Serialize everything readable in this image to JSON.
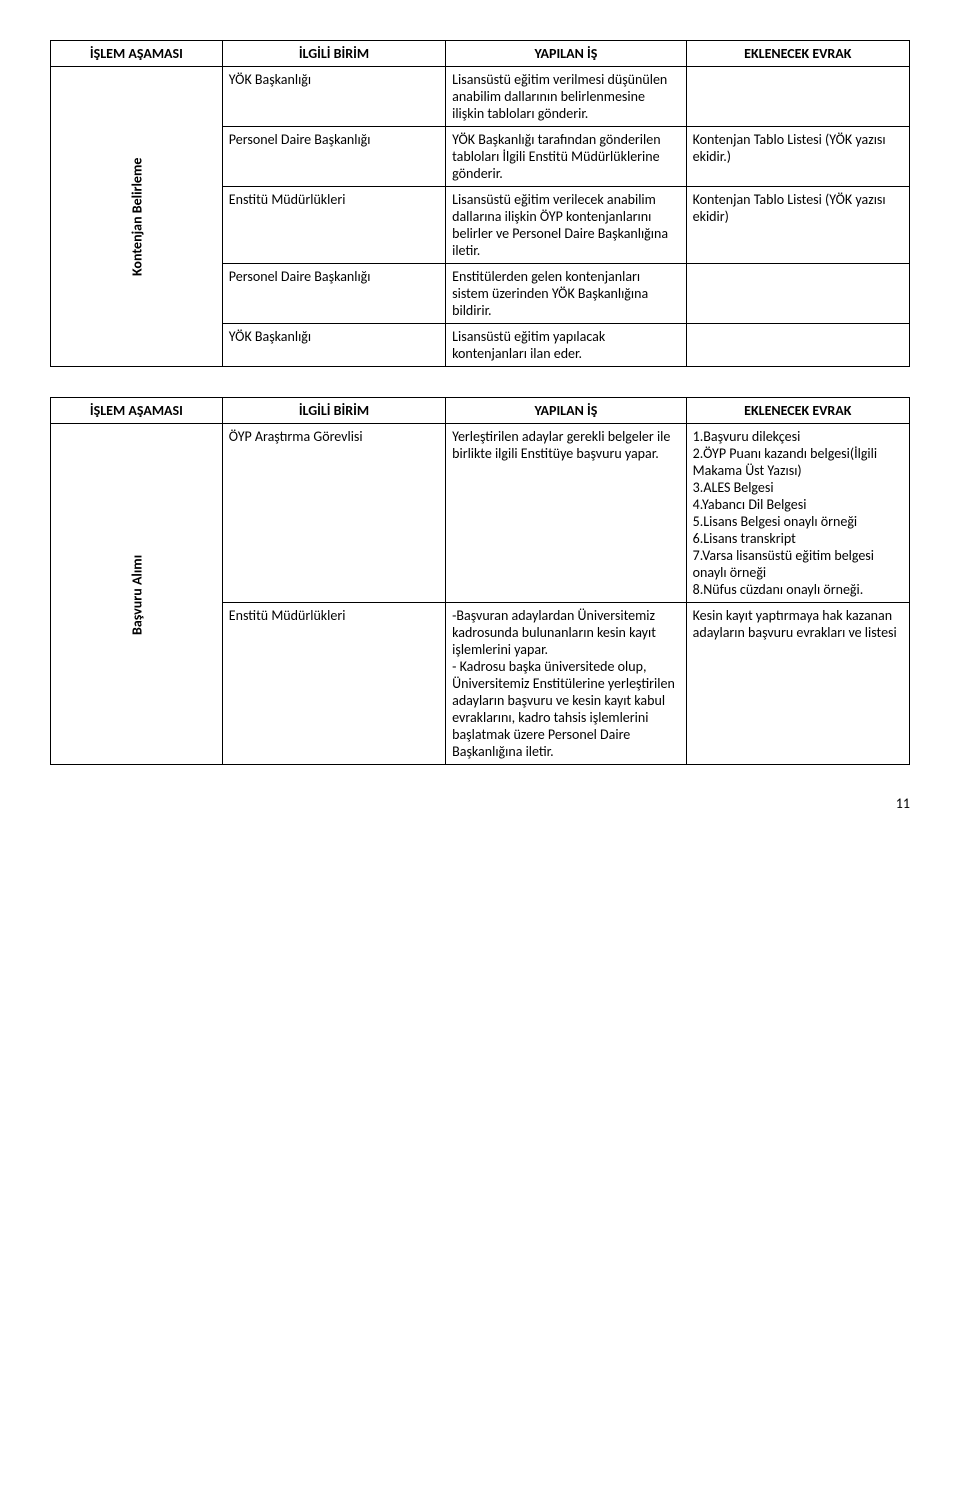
{
  "headers": {
    "c1": "İŞLEM AŞAMASI",
    "c2": "İLGİLİ BİRİM",
    "c3": "YAPILAN İŞ",
    "c4": "EKLENECEK EVRAK"
  },
  "table1": {
    "stage": "Kontenjan Belirleme",
    "rows": [
      {
        "unit": "YÖK Başkanlığı",
        "task": "Lisansüstü eğitim verilmesi düşünülen anabilim dallarının belirlenmesine ilişkin tabloları gönderir.",
        "doc": ""
      },
      {
        "unit": "Personel Daire Başkanlığı",
        "task": "YÖK Başkanlığı tarafından gönderilen tabloları İlgili Enstitü Müdürlüklerine gönderir.",
        "doc": "Kontenjan Tablo Listesi (YÖK yazısı ekidir.)"
      },
      {
        "unit": "Enstitü Müdürlükleri",
        "task": "Lisansüstü eğitim verilecek anabilim dallarına ilişkin ÖYP kontenjanlarını belirler ve Personel Daire Başkanlığına iletir.",
        "doc": "Kontenjan Tablo Listesi (YÖK yazısı ekidir)"
      },
      {
        "unit": "Personel Daire Başkanlığı",
        "task": "Enstitülerden gelen kontenjanları sistem üzerinden YÖK Başkanlığına bildirir.",
        "doc": ""
      },
      {
        "unit": "YÖK Başkanlığı",
        "task": "Lisansüstü eğitim yapılacak kontenjanları ilan eder.",
        "doc": ""
      }
    ]
  },
  "table2": {
    "stage": "Başvuru Alımı",
    "rows": [
      {
        "unit": "ÖYP Araştırma Görevlisi",
        "task": "Yerleştirilen adaylar gerekli belgeler ile birlikte ilgili Enstitüye başvuru yapar.",
        "doc": "1.Başvuru dilekçesi\n2.ÖYP Puanı kazandı belgesi(İlgili Makama Üst Yazısı)\n3.ALES Belgesi\n4.Yabancı Dil Belgesi\n5.Lisans Belgesi onaylı örneği\n6.Lisans transkript\n7.Varsa lisansüstü eğitim belgesi onaylı örneği\n8.Nüfus cüzdanı onaylı örneği."
      },
      {
        "unit": "Enstitü Müdürlükleri",
        "task": "-Başvuran adaylardan Üniversitemiz kadrosunda bulunanların kesin kayıt işlemlerini yapar.\n- Kadrosu başka üniversitede olup, Üniversitemiz Enstitülerine yerleştirilen adayların başvuru ve kesin kayıt kabul evraklarını, kadro tahsis işlemlerini başlatmak üzere Personel Daire Başkanlığına iletir.",
        "doc": "Kesin kayıt yaptırmaya hak kazanan adayların başvuru evrakları ve listesi"
      }
    ]
  },
  "pageNumber": "11"
}
